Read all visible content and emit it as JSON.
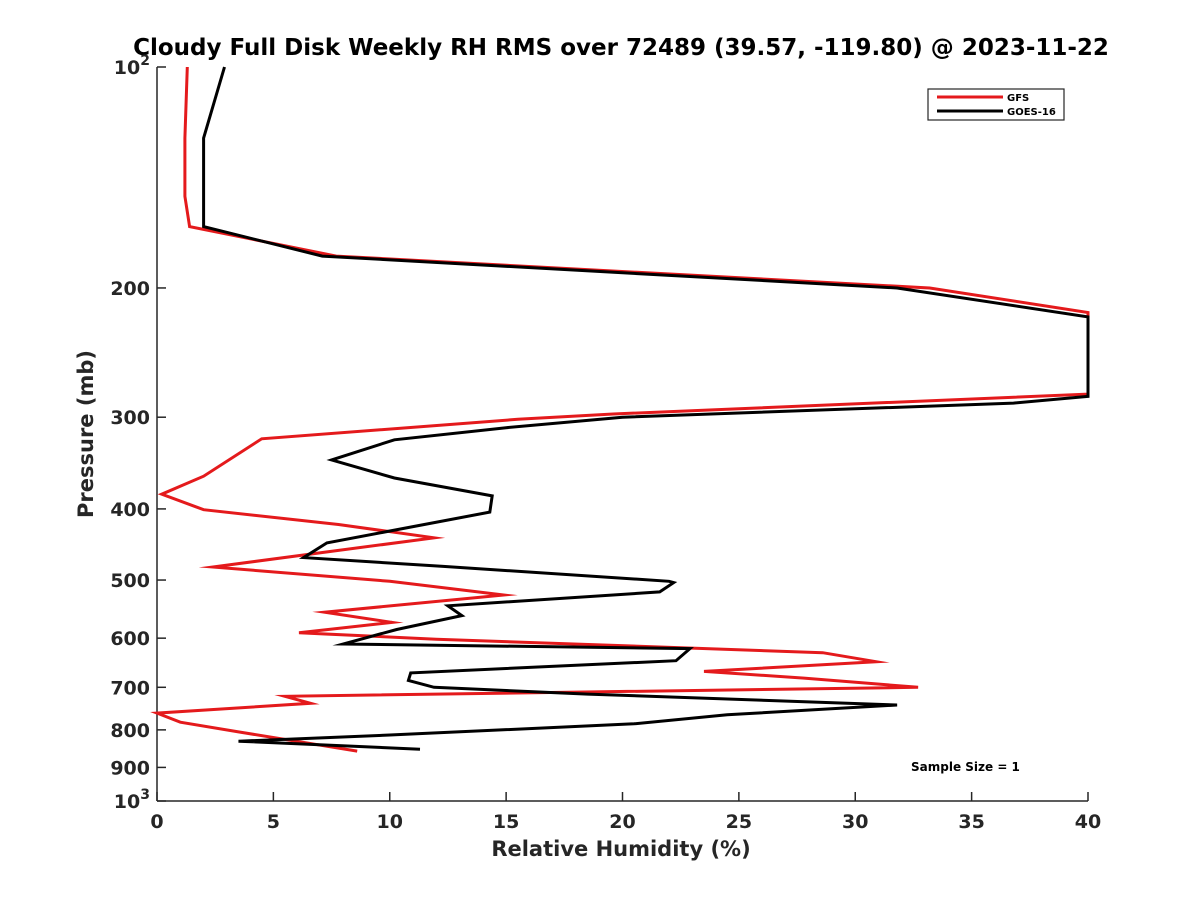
{
  "chart_data": {
    "type": "line",
    "title": "Cloudy Full Disk Weekly RH RMS over 72489 (39.57, -119.80) @ 2023-11-22",
    "xlabel": "Relative Humidity (%)",
    "ylabel": "Pressure (mb)",
    "xlim": [
      0,
      40
    ],
    "ylim": [
      100,
      1000
    ],
    "y_scale": "log",
    "y_reversed": true,
    "grid": false,
    "legend_position": "top-right",
    "x_ticks": [
      0,
      5,
      10,
      15,
      20,
      25,
      30,
      35,
      40
    ],
    "x_tick_labels": [
      "0",
      "5",
      "10",
      "15",
      "20",
      "25",
      "30",
      "35",
      "40"
    ],
    "y_ticks": [
      100,
      200,
      300,
      400,
      500,
      600,
      700,
      800,
      900,
      1000
    ],
    "y_tick_labels": [
      {
        "base": "10",
        "exp": "2"
      },
      {
        "base": "200",
        "exp": ""
      },
      {
        "base": "300",
        "exp": ""
      },
      {
        "base": "400",
        "exp": ""
      },
      {
        "base": "500",
        "exp": ""
      },
      {
        "base": "600",
        "exp": ""
      },
      {
        "base": "700",
        "exp": ""
      },
      {
        "base": "800",
        "exp": ""
      },
      {
        "base": "900",
        "exp": ""
      },
      {
        "base": "10",
        "exp": "3"
      }
    ],
    "series": [
      {
        "name": "GFS",
        "color": "#e41a1c",
        "points": [
          {
            "rh": 1.3,
            "p": 100
          },
          {
            "rh": 1.2,
            "p": 125
          },
          {
            "rh": 1.2,
            "p": 150
          },
          {
            "rh": 1.4,
            "p": 165
          },
          {
            "rh": 7.7,
            "p": 181
          },
          {
            "rh": 33.2,
            "p": 200
          },
          {
            "rh": 40.0,
            "p": 216
          },
          {
            "rh": 40.0,
            "p": 279
          },
          {
            "rh": 19.6,
            "p": 297
          },
          {
            "rh": 15.5,
            "p": 302
          },
          {
            "rh": 4.5,
            "p": 321
          },
          {
            "rh": 2.0,
            "p": 361
          },
          {
            "rh": 0.2,
            "p": 382
          },
          {
            "rh": 2.0,
            "p": 401
          },
          {
            "rh": 7.8,
            "p": 420
          },
          {
            "rh": 11.9,
            "p": 438
          },
          {
            "rh": 2.4,
            "p": 480
          },
          {
            "rh": 10.0,
            "p": 502
          },
          {
            "rh": 14.9,
            "p": 524
          },
          {
            "rh": 7.2,
            "p": 553
          },
          {
            "rh": 10.1,
            "p": 571
          },
          {
            "rh": 6.1,
            "p": 590
          },
          {
            "rh": 12.0,
            "p": 602
          },
          {
            "rh": 28.6,
            "p": 628
          },
          {
            "rh": 30.9,
            "p": 646
          },
          {
            "rh": 23.5,
            "p": 666
          },
          {
            "rh": 27.8,
            "p": 680
          },
          {
            "rh": 32.7,
            "p": 700
          },
          {
            "rh": 5.5,
            "p": 720
          },
          {
            "rh": 6.6,
            "p": 736
          },
          {
            "rh": 0.0,
            "p": 759
          },
          {
            "rh": 1.0,
            "p": 781
          },
          {
            "rh": 3.5,
            "p": 805
          },
          {
            "rh": 8.6,
            "p": 855
          }
        ]
      },
      {
        "name": "GOES-16",
        "color": "#000000",
        "points": [
          {
            "rh": 2.9,
            "p": 100
          },
          {
            "rh": 2.0,
            "p": 125
          },
          {
            "rh": 2.0,
            "p": 150
          },
          {
            "rh": 2.0,
            "p": 165
          },
          {
            "rh": 7.1,
            "p": 181
          },
          {
            "rh": 31.8,
            "p": 200
          },
          {
            "rh": 40.0,
            "p": 219
          },
          {
            "rh": 40.0,
            "p": 281
          },
          {
            "rh": 36.8,
            "p": 287
          },
          {
            "rh": 20.0,
            "p": 300
          },
          {
            "rh": 15.0,
            "p": 310
          },
          {
            "rh": 10.2,
            "p": 322
          },
          {
            "rh": 7.5,
            "p": 343
          },
          {
            "rh": 10.2,
            "p": 363
          },
          {
            "rh": 14.4,
            "p": 384
          },
          {
            "rh": 14.3,
            "p": 404
          },
          {
            "rh": 7.3,
            "p": 445
          },
          {
            "rh": 6.3,
            "p": 466
          },
          {
            "rh": 12.3,
            "p": 479
          },
          {
            "rh": 22.0,
            "p": 502
          },
          {
            "rh": 22.2,
            "p": 504
          },
          {
            "rh": 21.6,
            "p": 519
          },
          {
            "rh": 12.5,
            "p": 542
          },
          {
            "rh": 13.1,
            "p": 559
          },
          {
            "rh": 10.3,
            "p": 584
          },
          {
            "rh": 8.0,
            "p": 611
          },
          {
            "rh": 22.9,
            "p": 620
          },
          {
            "rh": 22.3,
            "p": 644
          },
          {
            "rh": 10.9,
            "p": 669
          },
          {
            "rh": 10.8,
            "p": 685
          },
          {
            "rh": 11.9,
            "p": 700
          },
          {
            "rh": 18.5,
            "p": 715
          },
          {
            "rh": 31.8,
            "p": 740
          },
          {
            "rh": 24.5,
            "p": 763
          },
          {
            "rh": 20.5,
            "p": 785
          },
          {
            "rh": 10.0,
            "p": 813
          },
          {
            "rh": 3.5,
            "p": 829
          },
          {
            "rh": 11.3,
            "p": 850
          }
        ]
      }
    ],
    "annotations": [
      {
        "text": "Sample Size = 1",
        "position": "bottom-right"
      }
    ]
  }
}
